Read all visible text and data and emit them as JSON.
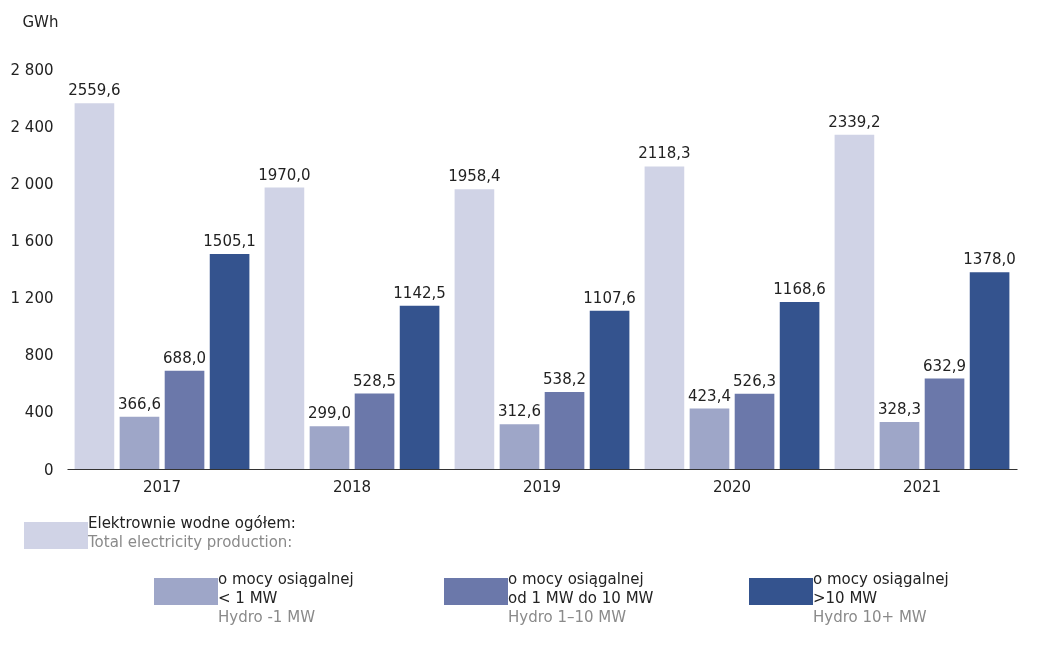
{
  "chart_data": {
    "type": "bar",
    "ylabel": "GWh",
    "categories": [
      "2017",
      "2018",
      "2019",
      "2020",
      "2021"
    ],
    "series": [
      {
        "name": "Elektrownie wodne ogółem:\nTotal electricity production:",
        "color": "#d0d3e6",
        "values": [
          2559.6,
          1970.0,
          1958.4,
          2118.3,
          2339.2
        ],
        "value_labels": [
          "2559,6",
          "1970,0",
          "1958,4",
          "2118,3",
          "2339,2"
        ]
      },
      {
        "name": "o mocy osiągalnej\n< 1 MW\nHydro -1 MW",
        "color": "#9ea6c8",
        "values": [
          366.6,
          299.0,
          312.6,
          423.4,
          328.3
        ],
        "value_labels": [
          "366,6",
          "299,0",
          "312,6",
          "423,4",
          "328,3"
        ]
      },
      {
        "name": "o mocy osiągalnej\nod 1 MW do 10 MW\nHydro 1–10 MW",
        "color": "#6b78aa",
        "values": [
          688.0,
          528.5,
          538.2,
          526.3,
          632.9
        ],
        "value_labels": [
          "688,0",
          "528,5",
          "538,2",
          "526,3",
          "632,9"
        ]
      },
      {
        "name": "o mocy osiągalnej\n>10 MW\nHydro 10+ MW",
        "color": "#34538e",
        "values": [
          1505.1,
          1142.5,
          1107.6,
          1168.6,
          1378.0
        ],
        "value_labels": [
          "1505,1",
          "1142,5",
          "1107,6",
          "1168,6",
          "1378,0"
        ]
      }
    ],
    "ylim": [
      0,
      2800
    ],
    "yticks": [
      0,
      {
        "value": 400,
        "label": "400"
      },
      {
        "value": 800,
        "label": "800"
      },
      {
        "value": 1200,
        "label": "1 200"
      },
      {
        "value": 1600,
        "label": "1 600"
      },
      {
        "value": 2000,
        "label": "2 000"
      },
      {
        "value": 2400,
        "label": "2 400"
      },
      {
        "value": 2800,
        "label": "2 800"
      }
    ],
    "grid": false,
    "legend": "bottom"
  }
}
